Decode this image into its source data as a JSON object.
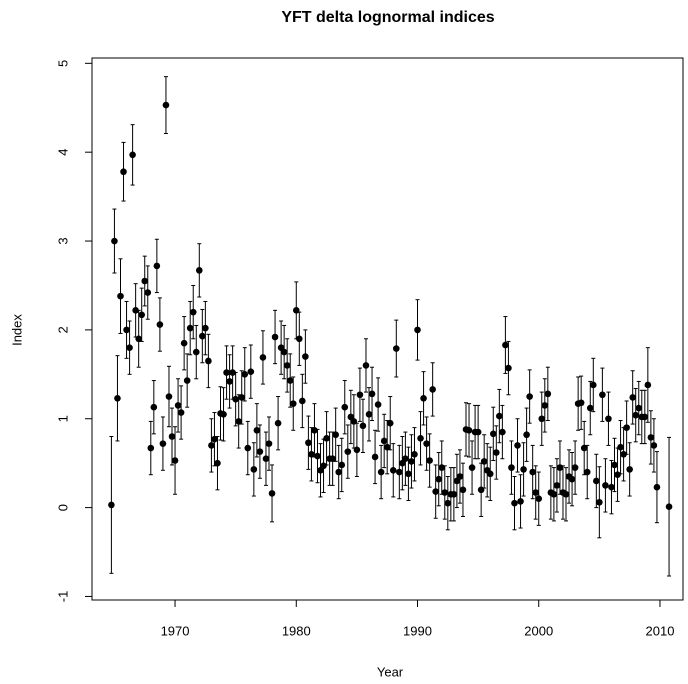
{
  "chart_data": {
    "type": "scatter",
    "title": "YFT delta lognormal indices",
    "x_label": "Year",
    "y_label": "Index",
    "xlim": [
      1963.15,
      2011.9
    ],
    "ylim": [
      -1.04,
      5.06
    ],
    "xticks": [
      1970,
      1980,
      1990,
      2000,
      2010
    ],
    "yticks": [
      -1,
      0,
      1,
      2,
      3,
      4,
      5
    ],
    "series": [
      {
        "color": "#000000",
        "x": [
          1964.75,
          1965,
          1965.25,
          1965.5,
          1965.75,
          1966,
          1966.25,
          1966.5,
          1966.75,
          1967,
          1967.25,
          1967.5,
          1967.75,
          1968,
          1968.25,
          1968.5,
          1968.75,
          1969,
          1969.25,
          1969.5,
          1969.75,
          1970,
          1970.25,
          1970.5,
          1970.75,
          1971,
          1971.25,
          1971.5,
          1971.75,
          1972,
          1972.25,
          1972.5,
          1972.75,
          1973,
          1973.25,
          1973.5,
          1973.75,
          1974,
          1974.25,
          1974.5,
          1974.75,
          1975,
          1975.25,
          1975.5,
          1975.75,
          1976,
          1976.25,
          1976.5,
          1976.75,
          1977,
          1977.25,
          1977.5,
          1977.75,
          1978,
          1978.25,
          1978.5,
          1978.75,
          1979,
          1979.25,
          1979.5,
          1979.75,
          1980,
          1980.25,
          1980.5,
          1980.75,
          1981,
          1981.25,
          1981.5,
          1981.75,
          1982,
          1982.25,
          1982.5,
          1982.75,
          1983,
          1983.25,
          1983.5,
          1983.75,
          1984,
          1984.25,
          1984.5,
          1984.75,
          1985,
          1985.25,
          1985.5,
          1985.75,
          1986,
          1986.25,
          1986.5,
          1986.75,
          1987,
          1987.25,
          1987.5,
          1987.75,
          1988,
          1988.25,
          1988.5,
          1988.75,
          1989,
          1989.25,
          1989.5,
          1989.75,
          1990,
          1990.25,
          1990.5,
          1990.75,
          1991,
          1991.25,
          1991.5,
          1991.75,
          1992,
          1992.25,
          1992.5,
          1992.75,
          1993,
          1993.25,
          1993.5,
          1993.75,
          1994,
          1994.25,
          1994.5,
          1994.75,
          1995,
          1995.25,
          1995.5,
          1995.75,
          1996,
          1996.25,
          1996.5,
          1996.75,
          1997,
          1997.25,
          1997.5,
          1997.75,
          1998,
          1998.25,
          1998.5,
          1998.75,
          1999,
          1999.25,
          1999.5,
          1999.75,
          2000,
          2000.25,
          2000.5,
          2000.75,
          2001,
          2001.25,
          2001.5,
          2001.75,
          2002,
          2002.25,
          2002.5,
          2002.75,
          2003,
          2003.25,
          2003.5,
          2003.75,
          2004,
          2004.25,
          2004.5,
          2004.75,
          2005,
          2005.25,
          2005.5,
          2005.75,
          2006,
          2006.25,
          2006.5,
          2006.75,
          2007,
          2007.25,
          2007.5,
          2007.75,
          2008,
          2008.25,
          2008.5,
          2008.75,
          2009,
          2009.25,
          2009.5,
          2009.75,
          2010.75
        ],
        "values": [
          0.03,
          3.0,
          1.23,
          2.38,
          3.78,
          2.0,
          1.8,
          3.97,
          2.22,
          1.9,
          2.17,
          2.55,
          2.42,
          0.67,
          1.13,
          2.72,
          2.06,
          0.72,
          4.53,
          1.25,
          0.8,
          0.53,
          1.15,
          1.07,
          1.85,
          1.43,
          2.02,
          2.2,
          1.75,
          2.67,
          1.93,
          2.02,
          1.65,
          0.7,
          0.77,
          0.5,
          1.06,
          1.05,
          1.52,
          1.42,
          1.52,
          1.22,
          0.97,
          1.24,
          1.5,
          0.67,
          1.53,
          0.43,
          0.87,
          0.63,
          1.69,
          0.55,
          0.72,
          0.16,
          1.92,
          0.95,
          1.8,
          1.75,
          1.6,
          1.43,
          1.17,
          2.22,
          1.9,
          1.2,
          1.7,
          0.73,
          0.6,
          0.87,
          0.58,
          0.42,
          0.47,
          0.78,
          0.55,
          0.55,
          0.82,
          0.4,
          0.48,
          1.13,
          0.63,
          1.02,
          0.97,
          0.65,
          1.27,
          0.92,
          1.6,
          1.05,
          1.28,
          0.57,
          1.16,
          0.4,
          0.75,
          0.68,
          0.95,
          0.42,
          1.79,
          0.4,
          0.5,
          0.55,
          0.38,
          0.52,
          0.6,
          2.0,
          0.78,
          1.23,
          0.72,
          0.53,
          1.33,
          0.18,
          0.32,
          0.45,
          0.17,
          0.05,
          0.15,
          0.15,
          0.3,
          0.35,
          0.2,
          0.88,
          0.87,
          0.45,
          0.85,
          0.85,
          0.2,
          0.52,
          0.42,
          0.38,
          0.83,
          0.62,
          1.03,
          0.85,
          1.83,
          1.57,
          0.45,
          0.05,
          0.7,
          0.07,
          0.43,
          0.82,
          1.25,
          0.4,
          0.17,
          0.1,
          1.0,
          1.15,
          1.28,
          0.17,
          0.15,
          0.25,
          0.45,
          0.17,
          0.15,
          0.35,
          0.32,
          0.45,
          1.17,
          1.18,
          0.67,
          0.4,
          1.12,
          1.38,
          0.3,
          0.06,
          1.27,
          0.25,
          1.0,
          0.23,
          0.48,
          0.37,
          0.68,
          0.6,
          0.9,
          0.43,
          1.24,
          1.04,
          1.12,
          1.02,
          1.02,
          1.38,
          0.79,
          0.7,
          0.23,
          0.01
        ],
        "errors": [
          0.77,
          0.36,
          0.48,
          0.42,
          0.33,
          0.32,
          0.3,
          0.34,
          0.3,
          0.32,
          0.3,
          0.28,
          0.3,
          0.3,
          0.3,
          0.3,
          0.3,
          0.3,
          0.32,
          0.34,
          0.32,
          0.38,
          0.3,
          0.3,
          0.3,
          0.3,
          0.3,
          0.3,
          0.3,
          0.3,
          0.3,
          0.3,
          0.3,
          0.3,
          0.3,
          0.3,
          0.3,
          0.3,
          0.3,
          0.3,
          0.3,
          0.3,
          0.3,
          0.3,
          0.3,
          0.3,
          0.3,
          0.3,
          0.3,
          0.3,
          0.3,
          0.3,
          0.3,
          0.32,
          0.3,
          0.3,
          0.3,
          0.3,
          0.3,
          0.3,
          0.3,
          0.32,
          0.3,
          0.3,
          0.3,
          0.3,
          0.3,
          0.3,
          0.3,
          0.3,
          0.3,
          0.3,
          0.3,
          0.3,
          0.3,
          0.3,
          0.3,
          0.3,
          0.3,
          0.3,
          0.3,
          0.3,
          0.3,
          0.3,
          0.3,
          0.3,
          0.3,
          0.3,
          0.3,
          0.3,
          0.3,
          0.3,
          0.3,
          0.3,
          0.32,
          0.3,
          0.3,
          0.3,
          0.3,
          0.3,
          0.3,
          0.34,
          0.3,
          0.3,
          0.3,
          0.3,
          0.3,
          0.3,
          0.3,
          0.3,
          0.3,
          0.3,
          0.3,
          0.3,
          0.3,
          0.3,
          0.3,
          0.3,
          0.3,
          0.3,
          0.3,
          0.3,
          0.3,
          0.3,
          0.3,
          0.3,
          0.3,
          0.3,
          0.3,
          0.3,
          0.32,
          0.3,
          0.3,
          0.3,
          0.3,
          0.3,
          0.3,
          0.3,
          0.3,
          0.3,
          0.3,
          0.3,
          0.3,
          0.3,
          0.3,
          0.3,
          0.3,
          0.3,
          0.3,
          0.3,
          0.3,
          0.3,
          0.3,
          0.3,
          0.3,
          0.3,
          0.3,
          0.3,
          0.3,
          0.3,
          0.3,
          0.4,
          0.3,
          0.3,
          0.3,
          0.3,
          0.3,
          0.3,
          0.3,
          0.3,
          0.3,
          0.3,
          0.3,
          0.3,
          0.3,
          0.3,
          0.3,
          0.42,
          0.3,
          0.3,
          0.4,
          0.78
        ]
      }
    ]
  }
}
